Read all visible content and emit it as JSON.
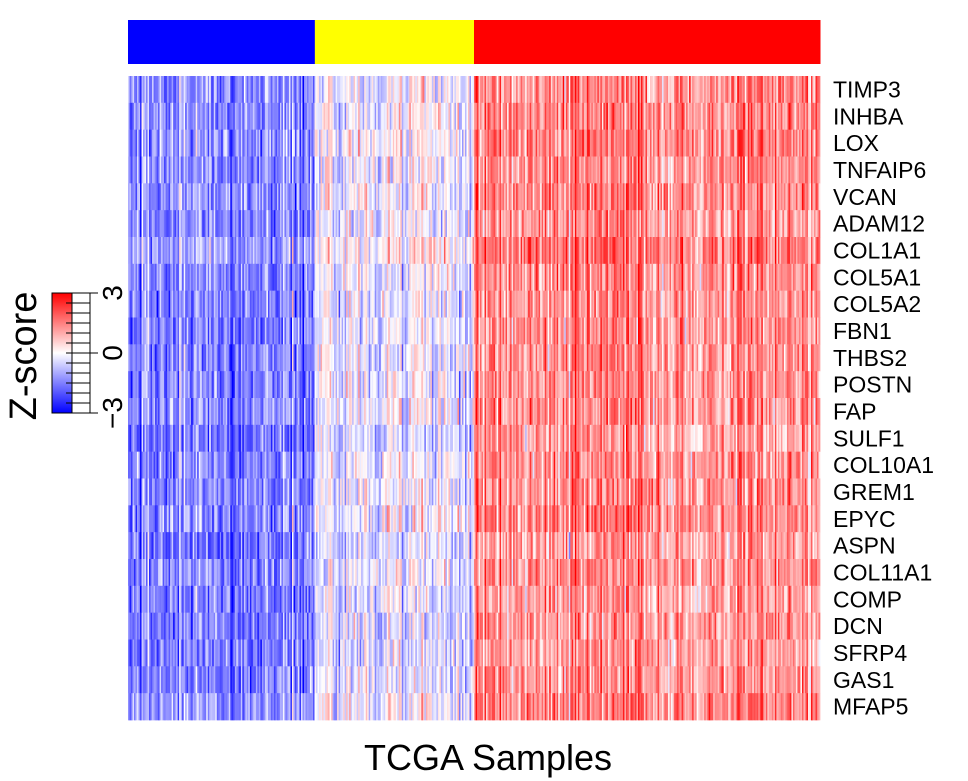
{
  "chart_data": {
    "type": "heatmap",
    "title": "",
    "xlabel": "TCGA Samples",
    "ylabel": "",
    "rows": [
      "TIMP3",
      "INHBA",
      "LOX",
      "TNFAIP6",
      "VCAN",
      "ADAM12",
      "COL1A1",
      "COL5A1",
      "COL5A2",
      "FBN1",
      "THBS2",
      "POSTN",
      "FAP",
      "SULF1",
      "COL10A1",
      "GREM1",
      "EPYC",
      "ASPN",
      "COL11A1",
      "COMP",
      "DCN",
      "SFRP4",
      "GAS1",
      "MFAP5"
    ],
    "column_groups": [
      {
        "color": "#0000ff",
        "fraction": 0.27
      },
      {
        "color": "#ffff00",
        "fraction": 0.23
      },
      {
        "color": "#ff0000",
        "fraction": 0.5
      }
    ],
    "approx_columns": 460,
    "group_mean_zscore": [
      -1.4,
      -0.2,
      1.3
    ],
    "colorscale": {
      "low": "#0000ff",
      "mid": "#ffffff",
      "high": "#ff0000",
      "min": -3,
      "max": 3
    },
    "legend": {
      "title": "Z-score",
      "ticks": [
        -3,
        0,
        3
      ],
      "tick_labels": [
        "−3",
        "0",
        "3"
      ],
      "position": "left"
    }
  }
}
